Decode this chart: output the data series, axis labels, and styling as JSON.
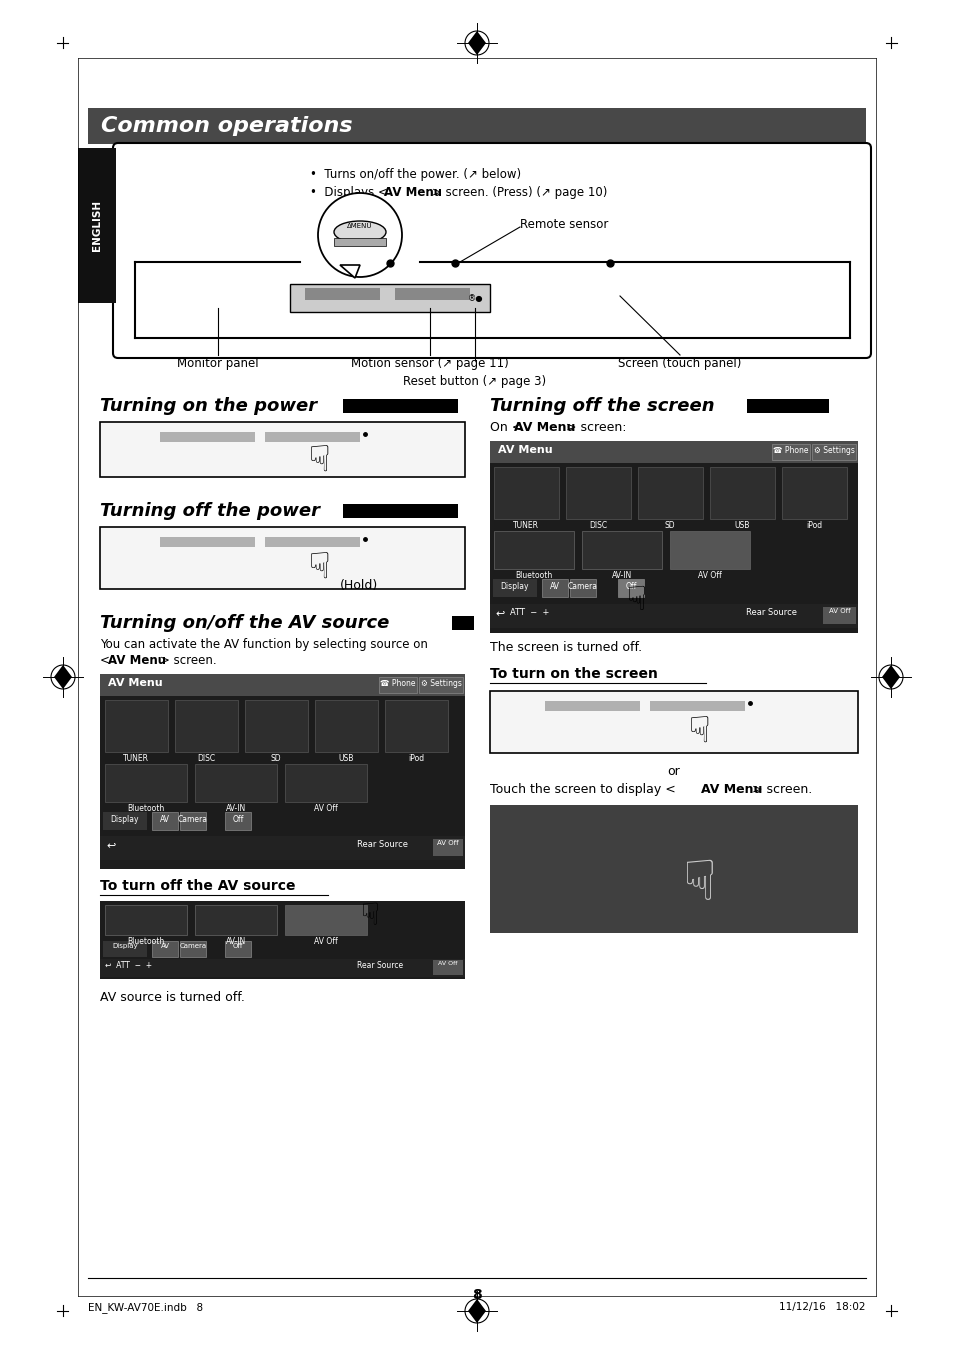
{
  "page_bg": "#ffffff",
  "page_number": "8",
  "header_bar_color": "#484848",
  "header_text": "Common operations",
  "header_text_color": "#ffffff",
  "english_tab_bg": "#111111",
  "english_tab_text": "ENGLISH",
  "english_tab_text_color": "#ffffff",
  "footer_left": "EN_KW-AV70E.indb   8",
  "footer_right": "11/12/16   18:02",
  "dark_screen_color": "#404040",
  "text_hold": "(Hold)",
  "text_screen_off": "The screen is turned off.",
  "text_or": "or",
  "text_av_source_off": "AV source is turned off."
}
